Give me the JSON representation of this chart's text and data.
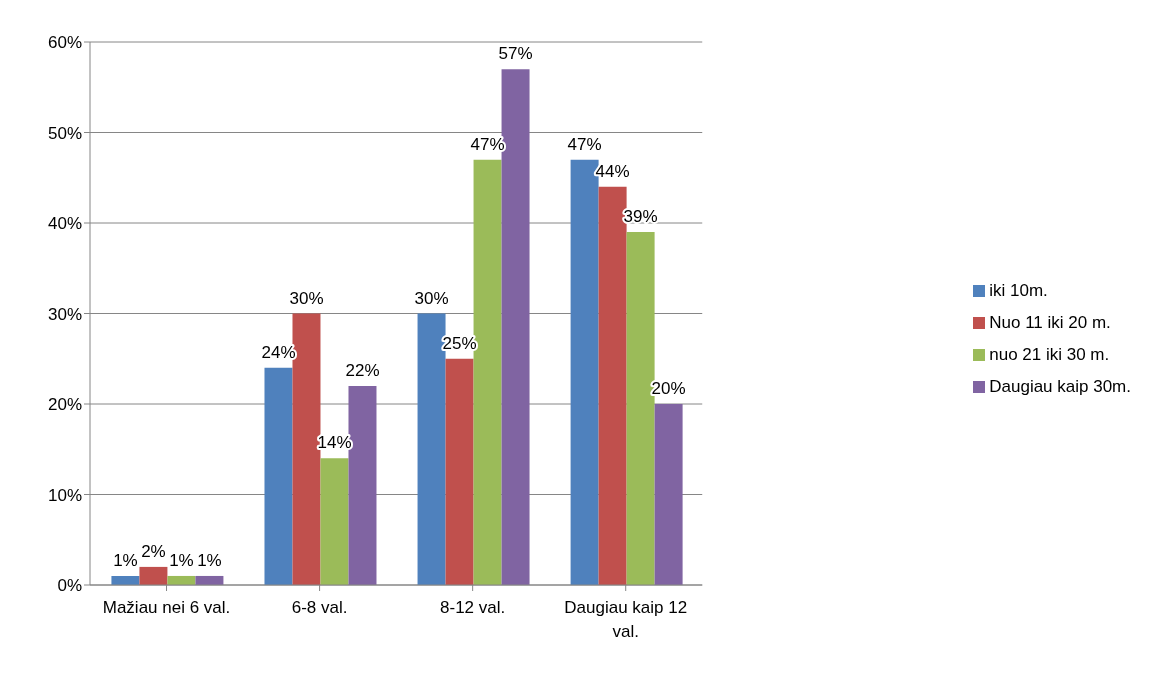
{
  "chart_data": {
    "type": "bar",
    "categories": [
      "Mažiau nei 6 val.",
      "6-8 val.",
      "8-12 val.",
      "Daugiau kaip 12 val."
    ],
    "series": [
      {
        "name": "iki 10m.",
        "color": "#4f81bd",
        "values": [
          1,
          24,
          30,
          47
        ],
        "value_labels": [
          "1%",
          "24%",
          "30%",
          "47%"
        ]
      },
      {
        "name": "Nuo 11 iki 20 m.",
        "color": "#c0504d",
        "values": [
          2,
          30,
          25,
          44
        ],
        "value_labels": [
          "2%",
          "30%",
          "25%",
          "44%"
        ]
      },
      {
        "name": "nuo 21 iki 30 m.",
        "color": "#9bbb59",
        "values": [
          1,
          14,
          47,
          39
        ],
        "value_labels": [
          "1%",
          "14%",
          "47%",
          "39%"
        ]
      },
      {
        "name": "Daugiau kaip 30m.",
        "color": "#8064a2",
        "values": [
          1,
          22,
          57,
          20
        ],
        "value_labels": [
          "1%",
          "22%",
          "57%",
          "20%"
        ]
      }
    ],
    "ylim": [
      0,
      60
    ],
    "yticks": [
      {
        "value": 0,
        "label": "0%"
      },
      {
        "value": 10,
        "label": "10%"
      },
      {
        "value": 20,
        "label": "20%"
      },
      {
        "value": 30,
        "label": "30%"
      },
      {
        "value": 40,
        "label": "40%"
      },
      {
        "value": 50,
        "label": "50%"
      },
      {
        "value": 60,
        "label": "60%"
      }
    ],
    "grid": "y",
    "legend": "right"
  }
}
